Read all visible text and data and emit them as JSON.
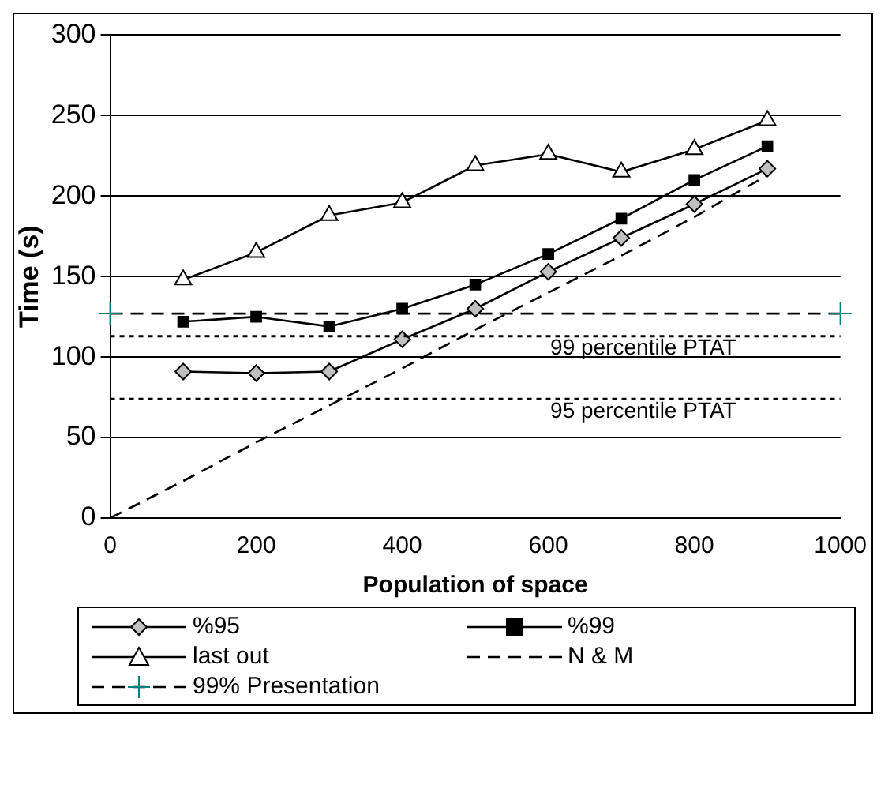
{
  "chart_data": {
    "type": "line",
    "xlabel": "Population of space",
    "ylabel": "Time (s)",
    "x": [
      100,
      200,
      300,
      400,
      500,
      600,
      700,
      800,
      900
    ],
    "series": [
      {
        "name": "%95",
        "color": "#000000",
        "marker": "diamond",
        "line_style": "solid",
        "values": [
          91,
          90,
          91,
          111,
          130,
          153,
          174,
          195,
          217
        ]
      },
      {
        "name": "%99",
        "color": "#000000",
        "marker": "square",
        "line_style": "solid",
        "values": [
          122,
          125,
          119,
          130,
          145,
          164,
          186,
          210,
          231
        ]
      },
      {
        "name": "last out",
        "color": "#000000",
        "marker": "triangle",
        "line_style": "solid",
        "values": [
          148,
          165,
          188,
          196,
          219,
          226,
          215,
          229,
          247
        ]
      },
      {
        "name": "N & M",
        "color": "#000000",
        "marker": "none",
        "line_style": "dashed",
        "x": [
          0,
          100,
          200,
          300,
          400,
          500,
          600,
          700,
          800,
          900
        ],
        "values": [
          0,
          23,
          47,
          70,
          93,
          117,
          140,
          163,
          187,
          213
        ]
      },
      {
        "name": "99% Presentation",
        "color": "#000000",
        "marker": "cross",
        "line_style": "dashed",
        "x": [
          0,
          1000
        ],
        "values": [
          127,
          127
        ]
      }
    ],
    "ref_lines": [
      {
        "axis": "y",
        "value": 113,
        "label": "99 percentile PTAT",
        "line_style": "dotted",
        "color": "#000000"
      },
      {
        "axis": "y",
        "value": 74,
        "label": "95 percentile PTAT",
        "line_style": "dotted",
        "color": "#000000"
      }
    ],
    "xlim": [
      0,
      1000
    ],
    "xticks": [
      0,
      200,
      400,
      600,
      800,
      1000
    ],
    "ylim": [
      0,
      300
    ],
    "yticks": [
      0,
      50,
      100,
      150,
      200,
      250,
      300
    ],
    "grid": "y",
    "legend": "bottom"
  }
}
